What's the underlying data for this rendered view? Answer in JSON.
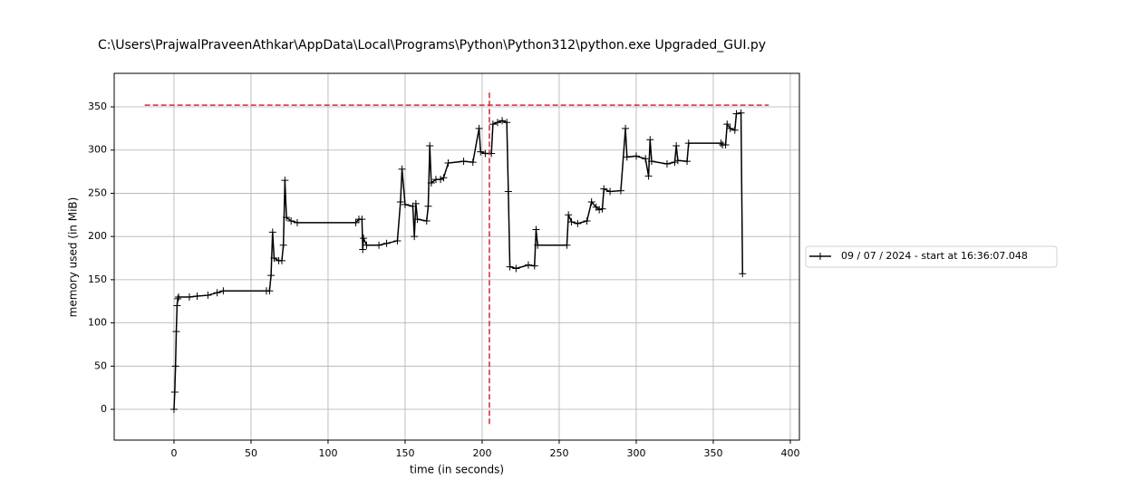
{
  "chart_data": {
    "type": "line",
    "title": "C:\\Users\\PrajwalPraveenAthkar\\AppData\\Local\\Programs\\Python\\Python312\\python.exe Upgraded_GUI.py",
    "xlabel": "time (in seconds)",
    "ylabel": "memory used (in MiB)",
    "xlim": [
      -38.8,
      405.9
    ],
    "ylim": [
      -35.6,
      388.8
    ],
    "xticks": [
      0,
      50,
      100,
      150,
      200,
      250,
      300,
      350,
      400
    ],
    "yticks": [
      0,
      50,
      100,
      150,
      200,
      250,
      300,
      350
    ],
    "grid": true,
    "legend": "outside right",
    "series": [
      {
        "name": "09 / 07 / 2024 - start at 16:36:07.048",
        "color": "#000000",
        "x": [
          0,
          0.5,
          1,
          1.5,
          2,
          2.5,
          3,
          10,
          15,
          22,
          28,
          32,
          60,
          62,
          63,
          64,
          65,
          68,
          70,
          71,
          72,
          73,
          76,
          80,
          118,
          120,
          122,
          122.5,
          123,
          125,
          133,
          138,
          145,
          147,
          148,
          150,
          155,
          156,
          157,
          158,
          164,
          165,
          166,
          167,
          170,
          173,
          175,
          178,
          188,
          194,
          198,
          199,
          202,
          206,
          207,
          210,
          213,
          216,
          217,
          218,
          222,
          230,
          234,
          235,
          236,
          255,
          256,
          258,
          262,
          268,
          271,
          274,
          276,
          278,
          279,
          283,
          290,
          293,
          294,
          300,
          306,
          308,
          309,
          310,
          320,
          325,
          326,
          327,
          333,
          334,
          355,
          356,
          358,
          359,
          361,
          364,
          365,
          368,
          369
        ],
        "values": [
          0,
          20,
          50,
          90,
          120,
          128,
          130,
          130,
          131,
          132,
          135,
          137,
          137,
          137,
          155,
          205,
          175,
          172,
          172,
          190,
          265,
          222,
          218,
          216,
          216,
          220,
          220,
          185,
          198,
          190,
          190,
          192,
          195,
          240,
          278,
          237,
          235,
          200,
          238,
          220,
          218,
          235,
          305,
          262,
          266,
          266,
          268,
          285,
          287,
          286,
          325,
          298,
          296,
          296,
          330,
          332,
          334,
          332,
          252,
          165,
          163,
          167,
          166,
          208,
          190,
          190,
          225,
          217,
          215,
          218,
          240,
          234,
          231,
          232,
          255,
          252,
          253,
          325,
          292,
          293,
          290,
          270,
          312,
          287,
          284,
          286,
          305,
          288,
          287,
          308,
          308,
          306,
          306,
          330,
          325,
          323,
          342,
          343,
          157
        ]
      }
    ],
    "max_line": {
      "y": 352,
      "x": [
        -19,
        386
      ],
      "color": "#d62728"
    },
    "max_time_line": {
      "x": 204.7,
      "y": [
        -17,
        370
      ],
      "color": "#d62728"
    }
  }
}
